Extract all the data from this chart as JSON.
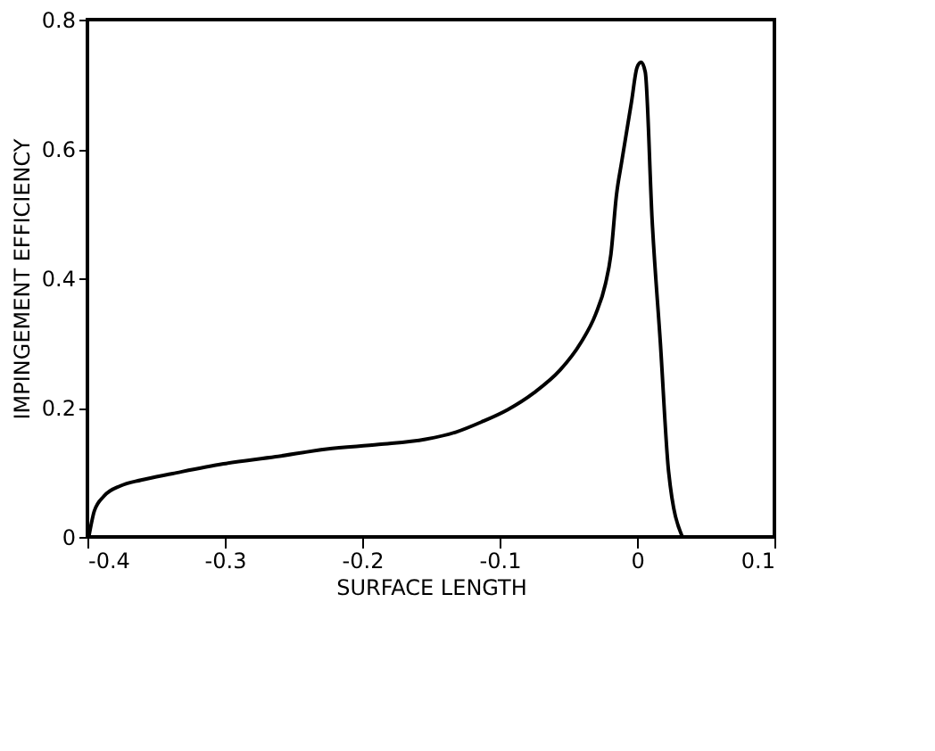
{
  "chart_data": {
    "type": "line",
    "xlabel": "SURFACE LENGTH",
    "ylabel": "IMPINGEMENT EFFICIENCY",
    "xlim": [
      -0.4,
      0.1
    ],
    "xticks": [
      -0.4,
      -0.3,
      -0.2,
      -0.1,
      0,
      0.1
    ],
    "ylim": [
      0,
      0.8
    ],
    "yticks": [
      0,
      0.2,
      0.4,
      0.6,
      0.8
    ],
    "grid": false,
    "legend": false,
    "series": [
      {
        "color": "#000000",
        "x": [
          -0.399,
          -0.395,
          -0.388,
          -0.376,
          -0.361,
          -0.338,
          -0.301,
          -0.263,
          -0.226,
          -0.188,
          -0.154,
          -0.132,
          -0.113,
          -0.094,
          -0.075,
          -0.056,
          -0.041,
          -0.03,
          -0.023,
          -0.019,
          -0.015,
          -0.011,
          -0.004,
          0,
          0.003,
          0.006,
          0.011,
          0.017,
          0.023,
          0.033
        ],
        "values": [
          0,
          0.04,
          0.063,
          0.079,
          0.088,
          0.098,
          0.113,
          0.124,
          0.136,
          0.143,
          0.151,
          0.162,
          0.178,
          0.197,
          0.223,
          0.258,
          0.3,
          0.345,
          0.391,
          0.437,
          0.528,
          0.582,
          0.673,
          0.726,
          0.734,
          0.719,
          0.49,
          0.3,
          0.101,
          0
        ]
      }
    ]
  }
}
